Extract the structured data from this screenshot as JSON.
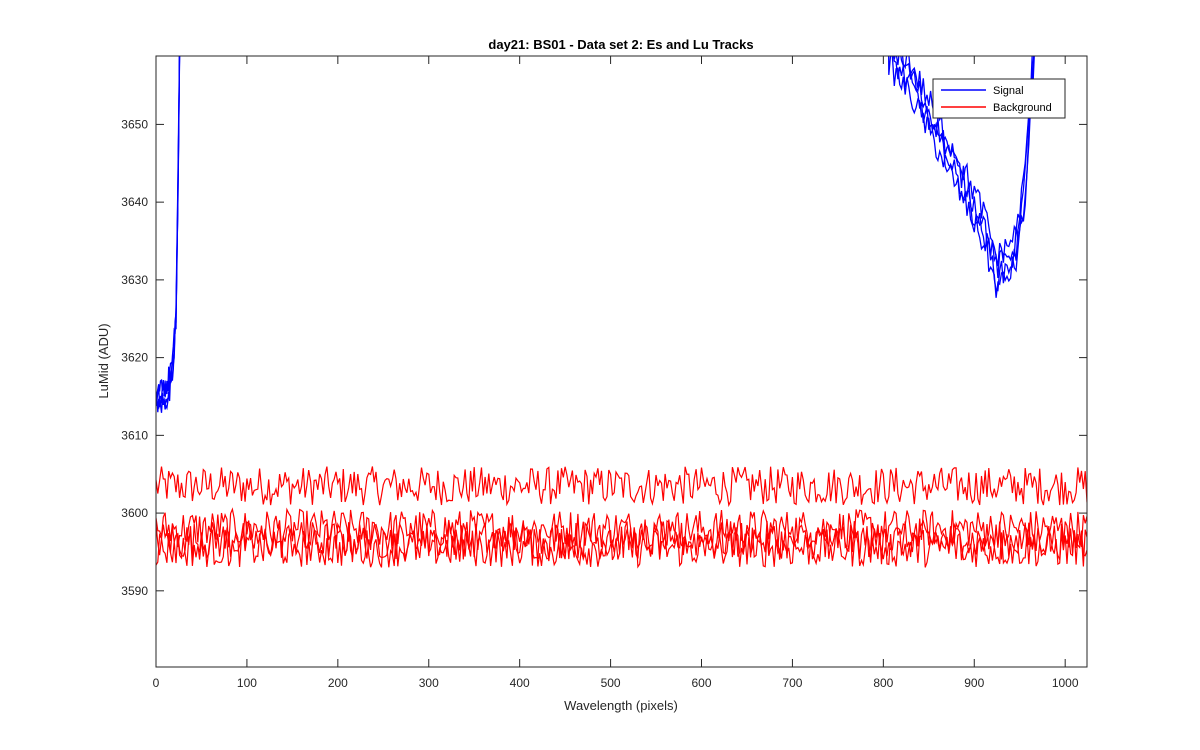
{
  "chart_data": {
    "type": "line",
    "title": "day21: BS01 - Data set 2: Es and Lu Tracks",
    "xlabel": "Wavelength (pixels)",
    "ylabel": "LuMid (ADU)",
    "xlim": [
      0,
      1024
    ],
    "ylim": [
      3580.2,
      3658.8
    ],
    "xticks": [
      0,
      100,
      200,
      300,
      400,
      500,
      600,
      700,
      800,
      900,
      1000
    ],
    "yticks": [
      3590,
      3600,
      3610,
      3620,
      3630,
      3640,
      3650
    ],
    "grid": false,
    "legend": {
      "position": "top-right",
      "entries": [
        {
          "name": "Signal",
          "color": "#0000ff"
        },
        {
          "name": "Background",
          "color": "#ff0000"
        }
      ]
    },
    "series": [
      {
        "name": "Signal",
        "color": "#0000ff",
        "approx_shape": [
          {
            "x": 0,
            "y": 3614
          },
          {
            "x": 10,
            "y": 3614
          },
          {
            "x": 18,
            "y": 3618
          },
          {
            "x": 22,
            "y": 3625
          },
          {
            "x": 24,
            "y": 3640
          },
          {
            "x": 26,
            "y": 3659
          },
          {
            "x": 805,
            "y": 3659
          },
          {
            "x": 830,
            "y": 3655
          },
          {
            "x": 860,
            "y": 3648
          },
          {
            "x": 890,
            "y": 3641
          },
          {
            "x": 910,
            "y": 3636
          },
          {
            "x": 925,
            "y": 3630
          },
          {
            "x": 945,
            "y": 3633
          },
          {
            "x": 955,
            "y": 3640
          },
          {
            "x": 962,
            "y": 3652
          },
          {
            "x": 966,
            "y": 3659
          }
        ]
      },
      {
        "name": "Background",
        "color": "#ff0000",
        "approx_levels": [
          3603.5,
          3598,
          3596.5,
          3595.5
        ],
        "approx_noise_amplitude": 2.5,
        "x_range": [
          0,
          1024
        ]
      }
    ]
  }
}
